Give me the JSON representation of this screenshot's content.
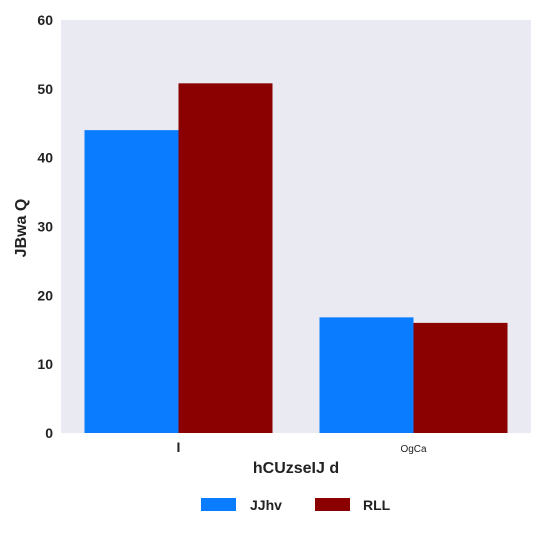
{
  "chart_data": {
    "type": "bar",
    "title": "",
    "xlabel": "hCUzseIJ d",
    "ylabel": "JBwa Q",
    "categories": [
      "I",
      "OgCa"
    ],
    "series": [
      {
        "name": "JJhv",
        "color": "#0a7cff",
        "values": [
          44,
          16.8
        ]
      },
      {
        "name": "RLL",
        "color": "#8b0000",
        "values": [
          50.8,
          16
        ]
      }
    ],
    "ylim": [
      0,
      60
    ],
    "yticks": [
      "0",
      "10",
      "20",
      "30",
      "40",
      "50",
      "60"
    ],
    "grid": false,
    "plot_background": "#eaeaf2",
    "legend_position": "bottom-center"
  }
}
